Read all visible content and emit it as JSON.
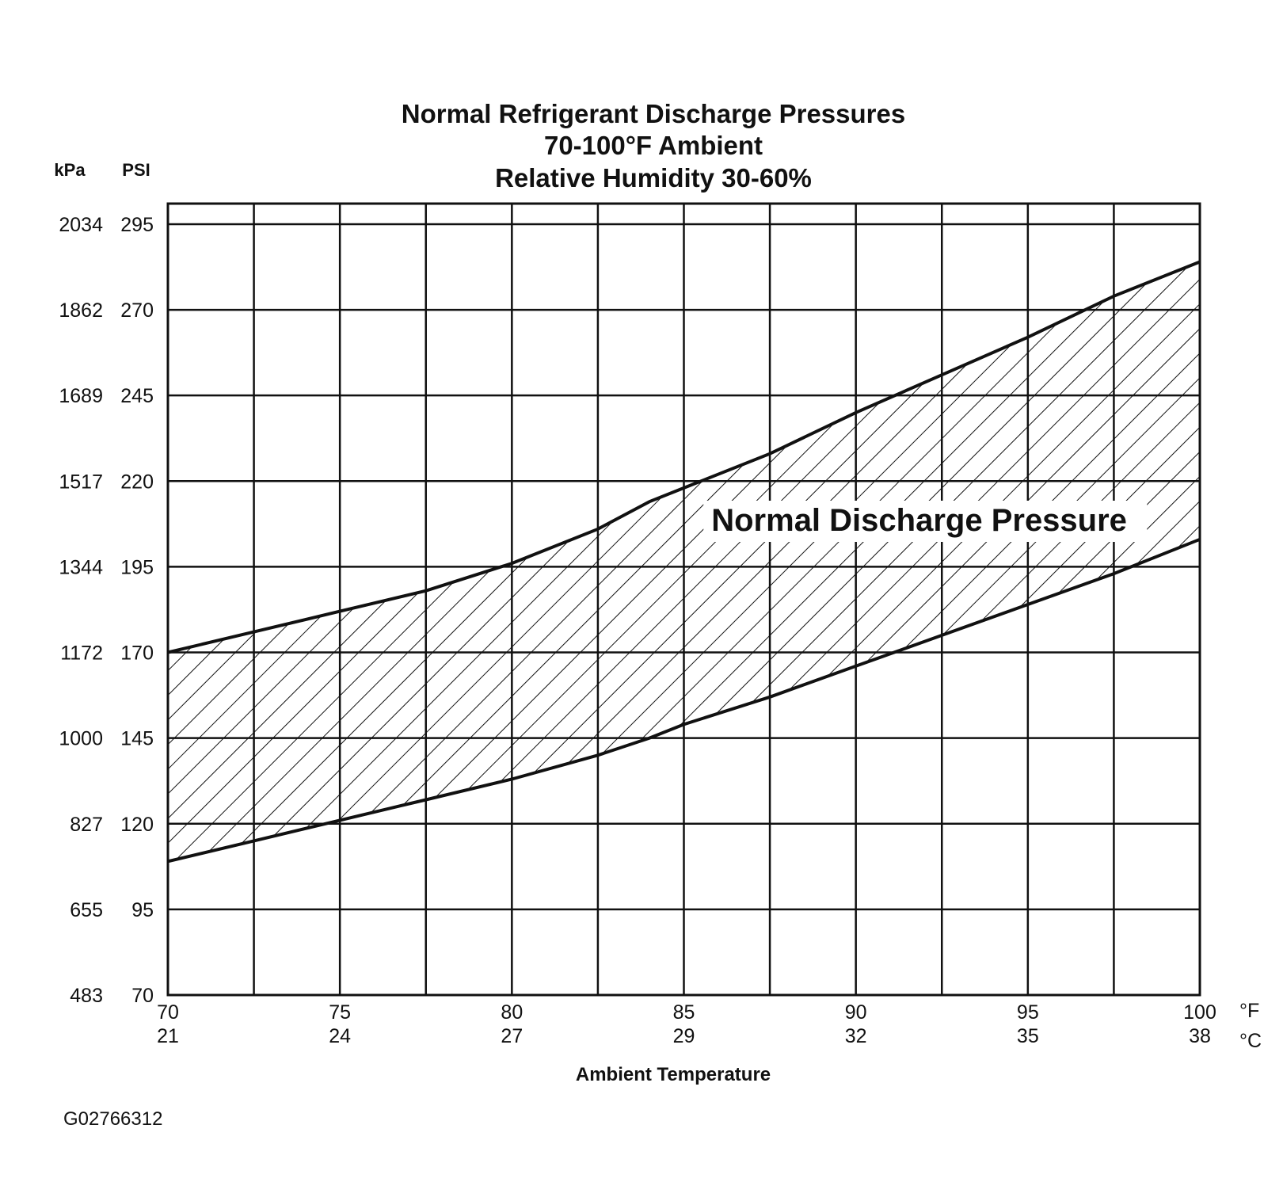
{
  "chart_data": {
    "type": "area",
    "title_lines": [
      "Normal  Refrigerant  Discharge  Pressures",
      "70-100°F Ambient",
      "Relative Humidity 30-60%"
    ],
    "xlabel": "Ambient Temperature",
    "x_units": {
      "primary": "°F",
      "secondary": "°C"
    },
    "y_units": {
      "primary": "PSI",
      "secondary": "kPa"
    },
    "x_ticks": [
      {
        "f": "70",
        "c": "21"
      },
      {
        "f": "75",
        "c": "24"
      },
      {
        "f": "80",
        "c": "27"
      },
      {
        "f": "85",
        "c": "29"
      },
      {
        "f": "90",
        "c": "32"
      },
      {
        "f": "95",
        "c": "35"
      },
      {
        "f": "100",
        "c": "38"
      }
    ],
    "y_ticks": [
      {
        "psi": "295",
        "kpa": "2034"
      },
      {
        "psi": "270",
        "kpa": "1862"
      },
      {
        "psi": "245",
        "kpa": "1689"
      },
      {
        "psi": "220",
        "kpa": "1517"
      },
      {
        "psi": "195",
        "kpa": "1344"
      },
      {
        "psi": "170",
        "kpa": "1172"
      },
      {
        "psi": "145",
        "kpa": "1000"
      },
      {
        "psi": "120",
        "kpa": "827"
      },
      {
        "psi": "95",
        "kpa": "655"
      },
      {
        "psi": "70",
        "kpa": "483"
      }
    ],
    "xlim": [
      70,
      100
    ],
    "ylim": [
      70,
      301
    ],
    "x_grid_step": 2.5,
    "grid": true,
    "band_label": "Normal Discharge Pressure",
    "series": [
      {
        "name": "",
        "role": "upper",
        "x": [
          70,
          72.5,
          75,
          77.5,
          80,
          82.5,
          84,
          85,
          87.5,
          90,
          92.5,
          95,
          97.5,
          100
        ],
        "y": [
          170,
          176,
          182,
          188,
          196,
          206,
          214,
          218,
          228,
          240,
          251,
          262,
          274,
          284
        ]
      },
      {
        "name": "",
        "role": "lower",
        "x": [
          70,
          72.5,
          75,
          77.5,
          80,
          82.5,
          84,
          85,
          87.5,
          90,
          92.5,
          95,
          97.5,
          100
        ],
        "y": [
          109,
          115,
          121,
          127,
          133,
          140,
          145,
          149,
          157,
          166,
          175,
          184,
          193,
          203
        ]
      }
    ],
    "fill_pattern": "diagonal-hatch",
    "figure_id": "G02766312"
  }
}
